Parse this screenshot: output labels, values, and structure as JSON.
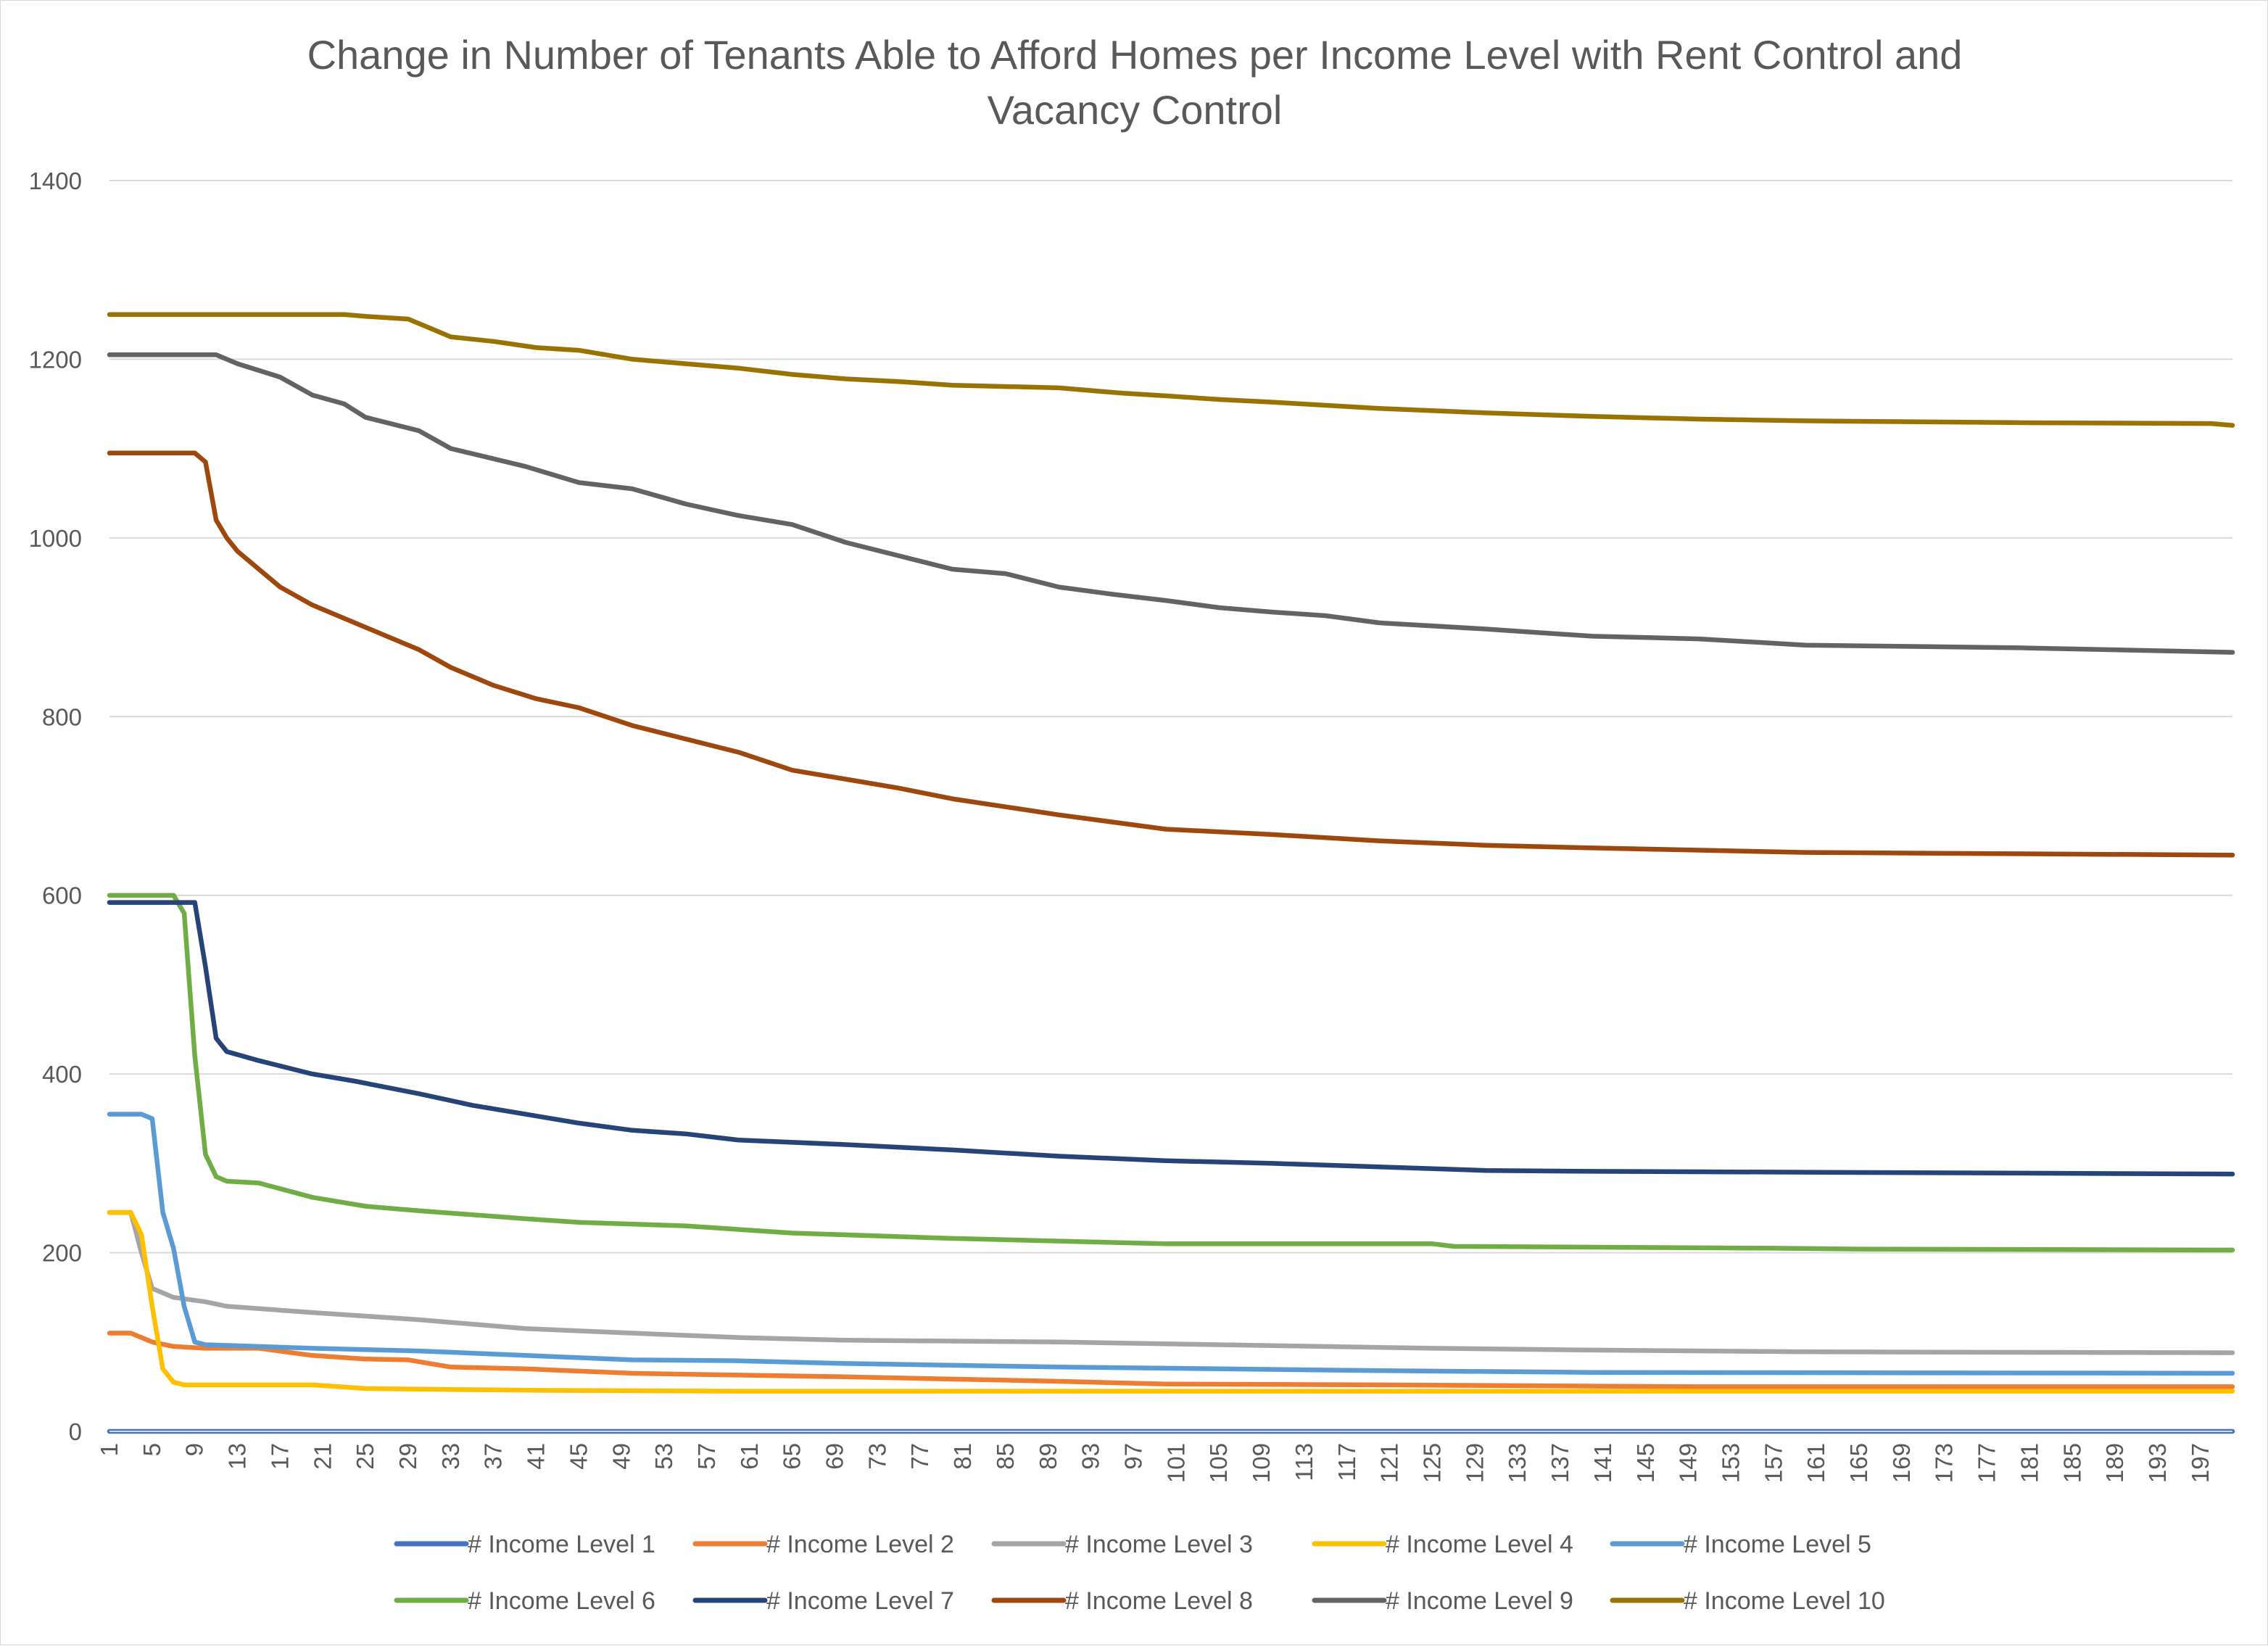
{
  "chart_data": {
    "type": "line",
    "title": "Change in Number of Tenants Able to Afford Homes per Income Level with Rent Control and Vacancy Control",
    "title_lines": [
      "Change in Number of Tenants Able to Afford Homes per Income Level with Rent Control and",
      "Vacancy Control"
    ],
    "xlabel": "",
    "ylabel": "",
    "x_range": [
      1,
      200
    ],
    "x_tick_labels": [
      "1",
      "5",
      "9",
      "13",
      "17",
      "21",
      "25",
      "29",
      "33",
      "37",
      "41",
      "45",
      "49",
      "53",
      "57",
      "61",
      "65",
      "69",
      "73",
      "77",
      "81",
      "85",
      "89",
      "93",
      "97",
      "101",
      "105",
      "109",
      "113",
      "117",
      "121",
      "125",
      "129",
      "133",
      "137",
      "141",
      "145",
      "149",
      "153",
      "157",
      "161",
      "165",
      "169",
      "173",
      "177",
      "181",
      "185",
      "189",
      "193",
      "197"
    ],
    "ylim": [
      0,
      1400
    ],
    "y_ticks": [
      0,
      200,
      400,
      600,
      800,
      1000,
      1200,
      1400
    ],
    "grid": true,
    "legend_position": "bottom",
    "series": [
      {
        "name": "# Income Level 1",
        "color": "#4472C4",
        "points": [
          [
            1,
            0
          ],
          [
            200,
            0
          ]
        ]
      },
      {
        "name": "# Income Level 2",
        "color": "#ED7D31",
        "points": [
          [
            1,
            110
          ],
          [
            3,
            110
          ],
          [
            5,
            100
          ],
          [
            7,
            95
          ],
          [
            10,
            93
          ],
          [
            15,
            93
          ],
          [
            20,
            85
          ],
          [
            25,
            81
          ],
          [
            29,
            80
          ],
          [
            33,
            72
          ],
          [
            40,
            70
          ],
          [
            50,
            65
          ],
          [
            60,
            63
          ],
          [
            70,
            61
          ],
          [
            90,
            56
          ],
          [
            100,
            53
          ],
          [
            120,
            52
          ],
          [
            150,
            50
          ],
          [
            200,
            50
          ]
        ]
      },
      {
        "name": "# Income Level 3",
        "color": "#A5A5A5",
        "points": [
          [
            1,
            245
          ],
          [
            3,
            245
          ],
          [
            4,
            200
          ],
          [
            5,
            160
          ],
          [
            7,
            150
          ],
          [
            10,
            145
          ],
          [
            12,
            140
          ],
          [
            20,
            133
          ],
          [
            30,
            125
          ],
          [
            40,
            115
          ],
          [
            50,
            110
          ],
          [
            60,
            105
          ],
          [
            70,
            102
          ],
          [
            90,
            100
          ],
          [
            110,
            96
          ],
          [
            125,
            93
          ],
          [
            140,
            91
          ],
          [
            160,
            89
          ],
          [
            200,
            88
          ]
        ]
      },
      {
        "name": "# Income Level 4",
        "color": "#FFC000",
        "points": [
          [
            1,
            245
          ],
          [
            3,
            245
          ],
          [
            4,
            220
          ],
          [
            5,
            140
          ],
          [
            6,
            70
          ],
          [
            7,
            55
          ],
          [
            8,
            52
          ],
          [
            20,
            52
          ],
          [
            25,
            48
          ],
          [
            40,
            46
          ],
          [
            60,
            45
          ],
          [
            200,
            45
          ]
        ]
      },
      {
        "name": "# Income Level 5",
        "color": "#5B9BD5",
        "points": [
          [
            1,
            355
          ],
          [
            4,
            355
          ],
          [
            5,
            350
          ],
          [
            6,
            245
          ],
          [
            7,
            205
          ],
          [
            8,
            140
          ],
          [
            9,
            100
          ],
          [
            10,
            97
          ],
          [
            20,
            93
          ],
          [
            30,
            90
          ],
          [
            40,
            85
          ],
          [
            50,
            80
          ],
          [
            60,
            79
          ],
          [
            70,
            76
          ],
          [
            90,
            72
          ],
          [
            120,
            68
          ],
          [
            140,
            66
          ],
          [
            200,
            65
          ]
        ]
      },
      {
        "name": "# Income Level 6",
        "color": "#70AD47",
        "points": [
          [
            1,
            600
          ],
          [
            7,
            600
          ],
          [
            8,
            580
          ],
          [
            9,
            420
          ],
          [
            10,
            310
          ],
          [
            11,
            285
          ],
          [
            12,
            280
          ],
          [
            15,
            278
          ],
          [
            20,
            262
          ],
          [
            25,
            252
          ],
          [
            30,
            247
          ],
          [
            40,
            238
          ],
          [
            45,
            234
          ],
          [
            55,
            230
          ],
          [
            65,
            222
          ],
          [
            80,
            216
          ],
          [
            100,
            210
          ],
          [
            125,
            210
          ],
          [
            127,
            207
          ],
          [
            157,
            205
          ],
          [
            165,
            204
          ],
          [
            200,
            203
          ]
        ]
      },
      {
        "name": "# Income Level 7",
        "color": "#264478",
        "points": [
          [
            1,
            592
          ],
          [
            9,
            592
          ],
          [
            10,
            520
          ],
          [
            11,
            440
          ],
          [
            12,
            425
          ],
          [
            15,
            415
          ],
          [
            20,
            400
          ],
          [
            24,
            392
          ],
          [
            30,
            378
          ],
          [
            35,
            365
          ],
          [
            40,
            355
          ],
          [
            45,
            345
          ],
          [
            50,
            337
          ],
          [
            55,
            333
          ],
          [
            60,
            326
          ],
          [
            70,
            321
          ],
          [
            80,
            315
          ],
          [
            90,
            308
          ],
          [
            100,
            303
          ],
          [
            110,
            300
          ],
          [
            120,
            296
          ],
          [
            130,
            292
          ],
          [
            140,
            291
          ],
          [
            200,
            288
          ]
        ]
      },
      {
        "name": "# Income Level 8",
        "color": "#9E480E",
        "points": [
          [
            1,
            1095
          ],
          [
            9,
            1095
          ],
          [
            10,
            1085
          ],
          [
            11,
            1020
          ],
          [
            12,
            1000
          ],
          [
            13,
            985
          ],
          [
            15,
            965
          ],
          [
            17,
            945
          ],
          [
            20,
            925
          ],
          [
            25,
            900
          ],
          [
            30,
            875
          ],
          [
            33,
            855
          ],
          [
            37,
            835
          ],
          [
            41,
            820
          ],
          [
            45,
            810
          ],
          [
            50,
            790
          ],
          [
            55,
            775
          ],
          [
            60,
            760
          ],
          [
            65,
            740
          ],
          [
            70,
            730
          ],
          [
            75,
            720
          ],
          [
            80,
            708
          ],
          [
            90,
            690
          ],
          [
            100,
            674
          ],
          [
            110,
            668
          ],
          [
            120,
            661
          ],
          [
            130,
            656
          ],
          [
            140,
            653
          ],
          [
            160,
            648
          ],
          [
            200,
            645
          ]
        ]
      },
      {
        "name": "# Income Level 9",
        "color": "#636363",
        "points": [
          [
            1,
            1205
          ],
          [
            11,
            1205
          ],
          [
            13,
            1195
          ],
          [
            17,
            1180
          ],
          [
            20,
            1160
          ],
          [
            23,
            1150
          ],
          [
            25,
            1135
          ],
          [
            30,
            1120
          ],
          [
            33,
            1100
          ],
          [
            40,
            1080
          ],
          [
            45,
            1062
          ],
          [
            50,
            1055
          ],
          [
            55,
            1038
          ],
          [
            60,
            1025
          ],
          [
            65,
            1015
          ],
          [
            70,
            995
          ],
          [
            75,
            980
          ],
          [
            80,
            965
          ],
          [
            85,
            960
          ],
          [
            90,
            945
          ],
          [
            95,
            937
          ],
          [
            100,
            930
          ],
          [
            105,
            922
          ],
          [
            110,
            917
          ],
          [
            115,
            913
          ],
          [
            120,
            905
          ],
          [
            130,
            898
          ],
          [
            140,
            890
          ],
          [
            150,
            887
          ],
          [
            160,
            880
          ],
          [
            180,
            877
          ],
          [
            200,
            872
          ]
        ]
      },
      {
        "name": "# Income Level 10",
        "color": "#997300",
        "points": [
          [
            1,
            1250
          ],
          [
            23,
            1250
          ],
          [
            25,
            1248
          ],
          [
            29,
            1245
          ],
          [
            31,
            1235
          ],
          [
            33,
            1225
          ],
          [
            37,
            1220
          ],
          [
            41,
            1213
          ],
          [
            45,
            1210
          ],
          [
            50,
            1200
          ],
          [
            55,
            1195
          ],
          [
            60,
            1190
          ],
          [
            65,
            1183
          ],
          [
            70,
            1178
          ],
          [
            75,
            1175
          ],
          [
            80,
            1171
          ],
          [
            90,
            1168
          ],
          [
            96,
            1162
          ],
          [
            100,
            1159
          ],
          [
            105,
            1155
          ],
          [
            110,
            1152
          ],
          [
            120,
            1145
          ],
          [
            130,
            1140
          ],
          [
            140,
            1136
          ],
          [
            150,
            1133
          ],
          [
            160,
            1131
          ],
          [
            180,
            1129
          ],
          [
            198,
            1128
          ],
          [
            200,
            1126
          ]
        ]
      }
    ]
  }
}
